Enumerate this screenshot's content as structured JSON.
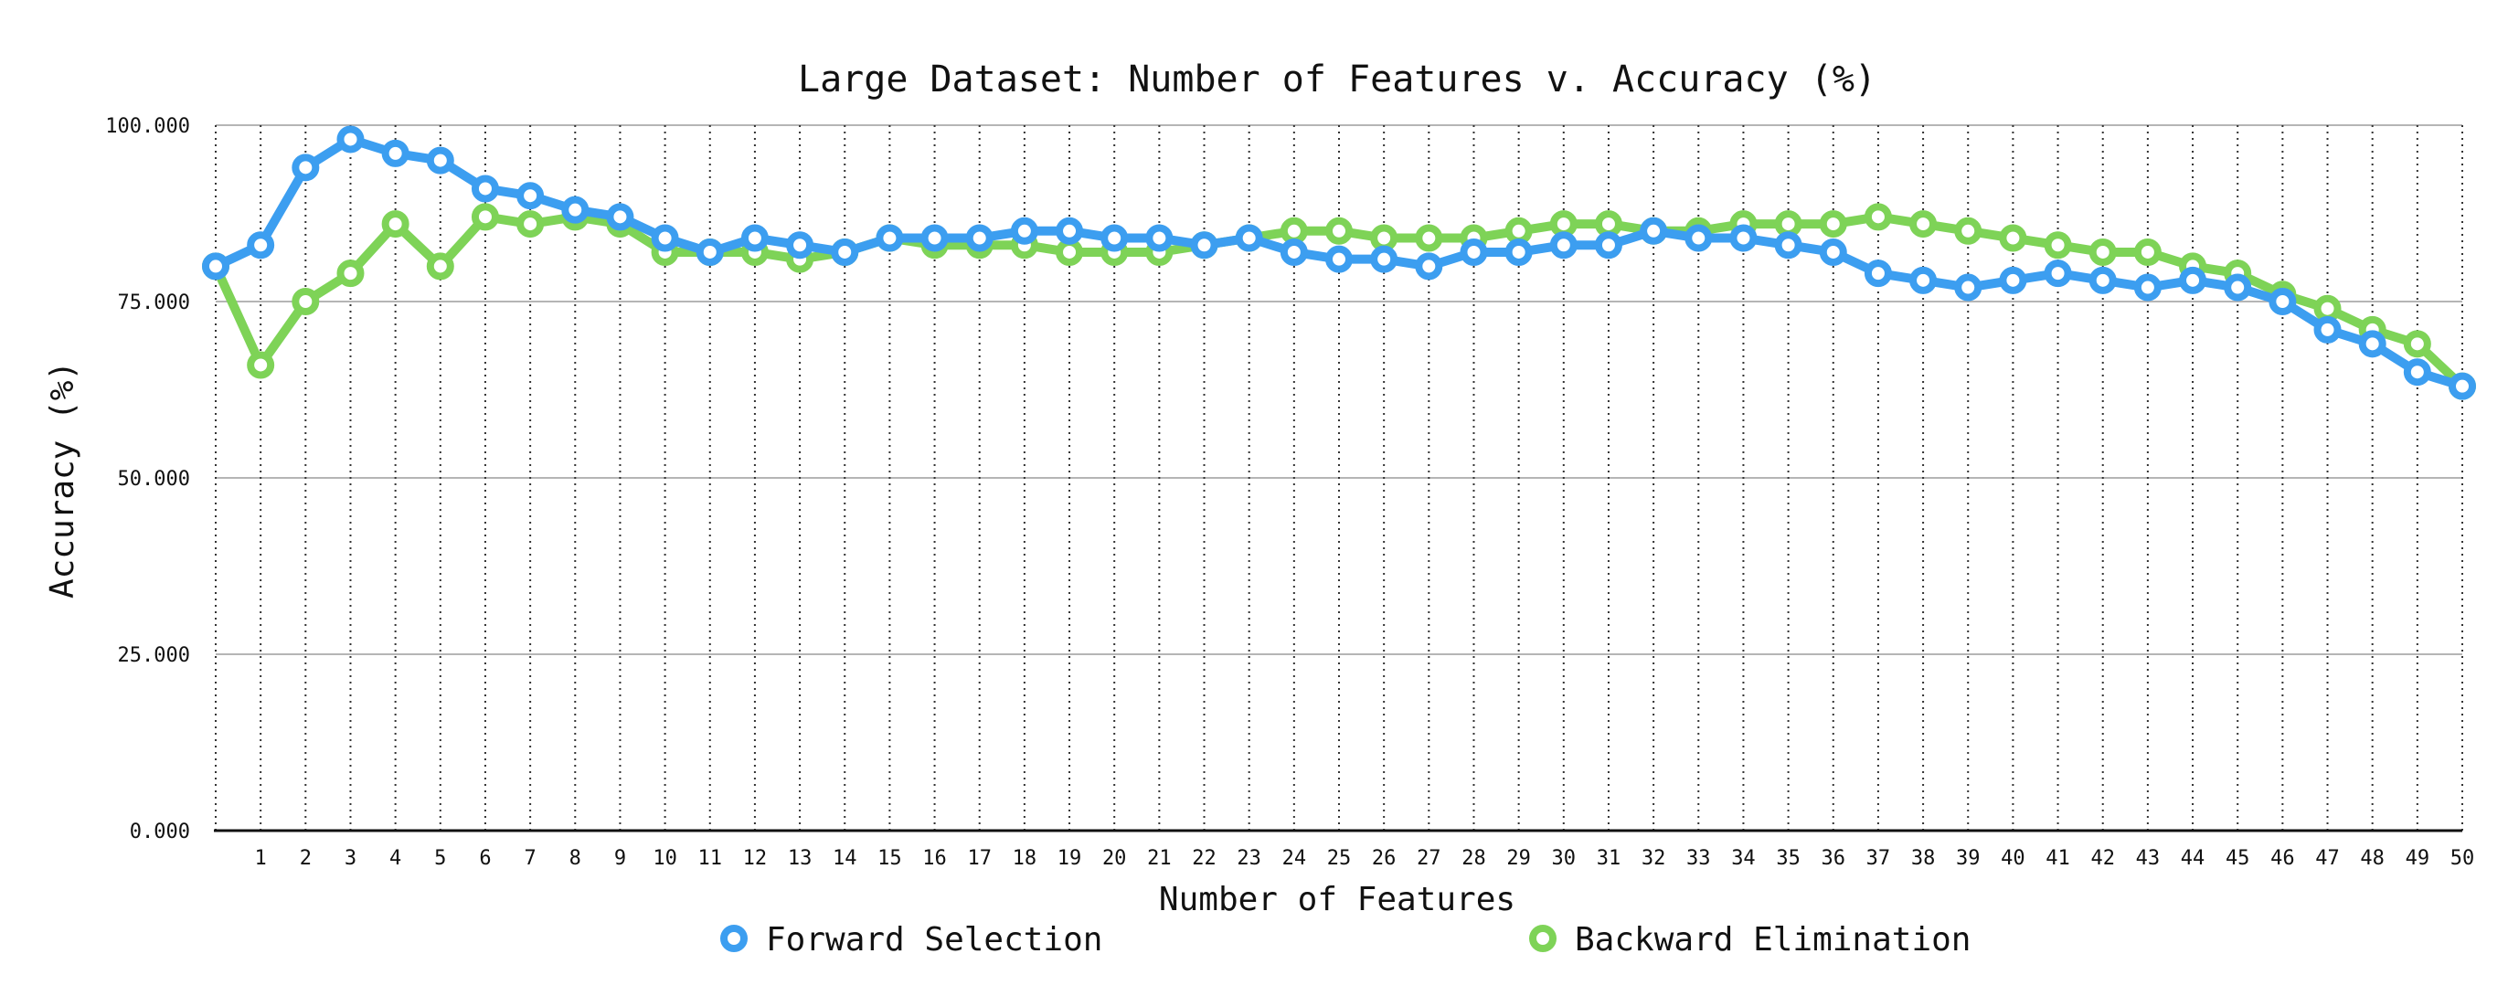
{
  "chart_data": {
    "type": "line",
    "title": "Large Dataset: Number of Features v. Accuracy (%)",
    "xlabel": "Number of Features",
    "ylabel": "Accuracy (%)",
    "ylim": [
      0,
      100
    ],
    "yticks": [
      "0.000",
      "25.000",
      "50.000",
      "75.000",
      "100.000"
    ],
    "ytick_values": [
      0,
      25,
      50,
      75,
      100
    ],
    "xlim": [
      0,
      50
    ],
    "x": [
      0,
      1,
      2,
      3,
      4,
      5,
      6,
      7,
      8,
      9,
      10,
      11,
      12,
      13,
      14,
      15,
      16,
      17,
      18,
      19,
      20,
      21,
      22,
      23,
      24,
      25,
      26,
      27,
      28,
      29,
      30,
      31,
      32,
      33,
      34,
      35,
      36,
      37,
      38,
      39,
      40,
      41,
      42,
      43,
      44,
      45,
      46,
      47,
      48,
      49,
      50
    ],
    "xtick_labels": [
      "1",
      "2",
      "3",
      "4",
      "5",
      "6",
      "7",
      "8",
      "9",
      "10",
      "11",
      "12",
      "13",
      "14",
      "15",
      "16",
      "17",
      "18",
      "19",
      "20",
      "21",
      "22",
      "23",
      "24",
      "25",
      "26",
      "27",
      "28",
      "29",
      "30",
      "31",
      "32",
      "33",
      "34",
      "35",
      "36",
      "37",
      "38",
      "39",
      "40",
      "41",
      "42",
      "43",
      "44",
      "45",
      "46",
      "47",
      "48",
      "49",
      "50"
    ],
    "grid": {
      "horizontal": "solid",
      "vertical": "dotted"
    },
    "legend_position": "bottom",
    "series": [
      {
        "name": "Forward Selection",
        "color": "#3c9ef0",
        "values": [
          80,
          83,
          94,
          98,
          96,
          95,
          91,
          90,
          88,
          87,
          84,
          82,
          84,
          83,
          82,
          84,
          84,
          84,
          85,
          85,
          84,
          84,
          83,
          84,
          82,
          81,
          81,
          80,
          82,
          82,
          83,
          83,
          85,
          84,
          84,
          83,
          82,
          79,
          78,
          77,
          78,
          79,
          78,
          77,
          78,
          77,
          75,
          71,
          69,
          65,
          63
        ]
      },
      {
        "name": "Backward Elimination",
        "color": "#7ed357",
        "values": [
          80,
          66,
          75,
          79,
          86,
          80,
          87,
          86,
          87,
          86,
          82,
          82,
          82,
          81,
          82,
          84,
          83,
          83,
          83,
          82,
          82,
          82,
          83,
          84,
          85,
          85,
          84,
          84,
          84,
          85,
          86,
          86,
          85,
          85,
          86,
          86,
          86,
          87,
          86,
          85,
          84,
          83,
          82,
          82,
          80,
          79,
          76,
          74,
          71,
          69,
          63
        ]
      }
    ]
  }
}
